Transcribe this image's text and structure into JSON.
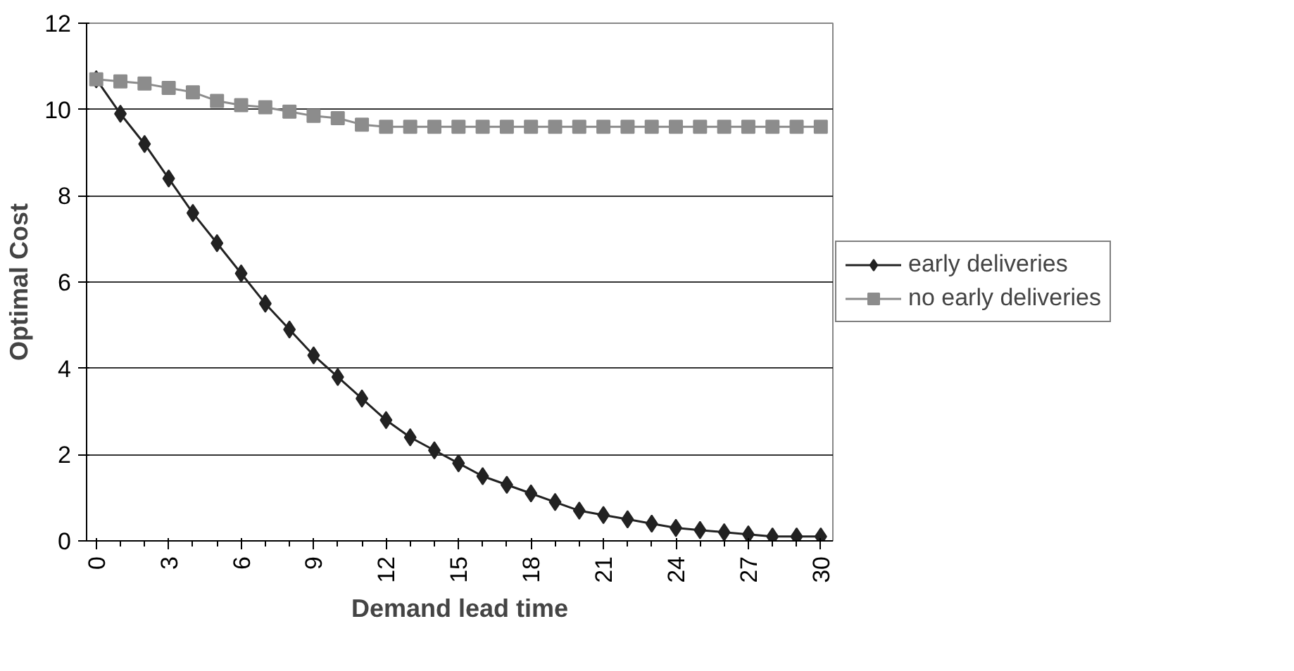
{
  "chart_data": {
    "type": "line",
    "xlabel": "Demand lead time",
    "ylabel": "Optimal Cost",
    "x": [
      0,
      1,
      2,
      3,
      4,
      5,
      6,
      7,
      8,
      9,
      10,
      11,
      12,
      13,
      14,
      15,
      16,
      17,
      18,
      19,
      20,
      21,
      22,
      23,
      24,
      25,
      26,
      27,
      28,
      29,
      30
    ],
    "series": [
      {
        "name": "early deliveries",
        "color": "#222222",
        "marker": "diamond",
        "values": [
          10.7,
          9.9,
          9.2,
          8.4,
          7.6,
          6.9,
          6.2,
          5.5,
          4.9,
          4.3,
          3.8,
          3.3,
          2.8,
          2.4,
          2.1,
          1.8,
          1.5,
          1.3,
          1.1,
          0.9,
          0.7,
          0.6,
          0.5,
          0.4,
          0.3,
          0.25,
          0.2,
          0.15,
          0.1,
          0.1,
          0.1
        ]
      },
      {
        "name": "no early deliveries",
        "color": "#8c8c8c",
        "marker": "square",
        "values": [
          10.7,
          10.65,
          10.6,
          10.5,
          10.4,
          10.2,
          10.1,
          10.05,
          9.95,
          9.85,
          9.8,
          9.65,
          9.6,
          9.6,
          9.6,
          9.6,
          9.6,
          9.6,
          9.6,
          9.6,
          9.6,
          9.6,
          9.6,
          9.6,
          9.6,
          9.6,
          9.6,
          9.6,
          9.6,
          9.6,
          9.6
        ]
      }
    ],
    "xlim": [
      -0.4,
      30.5
    ],
    "ylim": [
      0,
      12
    ],
    "xticks": [
      0,
      3,
      6,
      9,
      12,
      15,
      18,
      21,
      24,
      27,
      30
    ],
    "yticks": [
      0,
      2,
      4,
      6,
      8,
      10,
      12
    ],
    "grid": "y",
    "legend": "right",
    "line_style": "solid"
  }
}
